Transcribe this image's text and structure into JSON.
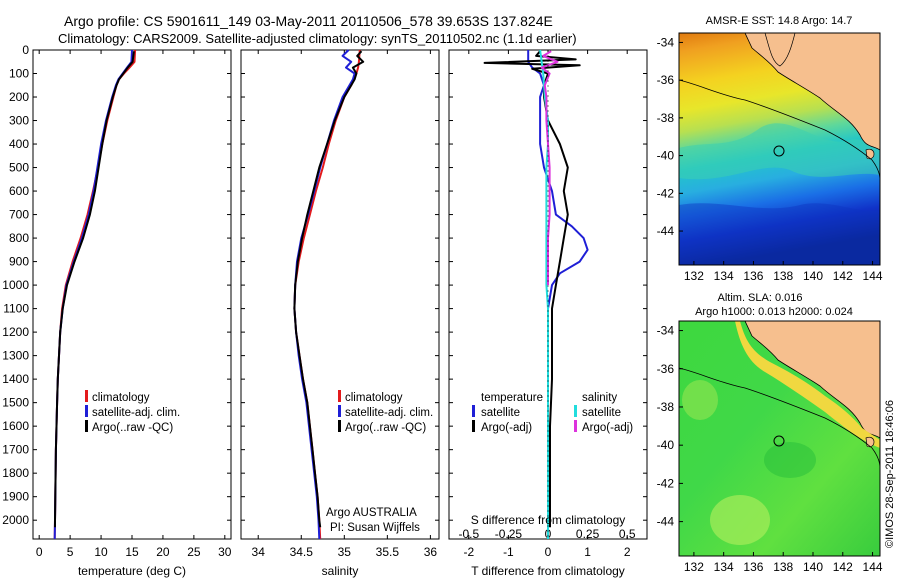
{
  "header": {
    "title_line1": "Argo profile: CS 5901611_149 03-May-2011 20110506_578 39.653S 137.824E",
    "title_line2": "Climatology: CARS2009. Satellite-adjusted climatology: synTS_20110502.nc (1.1d earlier)"
  },
  "colors": {
    "climatology": "#e31a1c",
    "satellite": "#1f1fd6",
    "argo": "#000000",
    "sal_satellite": "#22dddd",
    "sal_argo": "#dd33dd"
  },
  "legend_profile": {
    "climatology": "climatology",
    "satellite": "satellite-adj. clim.",
    "argo": "Argo(..raw -QC)"
  },
  "legend_diff": {
    "temperature_heading": "temperature",
    "salinity_heading": "salinity",
    "t_satellite": "satellite",
    "t_argo": "Argo(-adj)",
    "s_satellite": "satellite",
    "s_argo": "Argo(-adj)"
  },
  "annotation_salinity": {
    "line1": "Argo AUSTRALIA",
    "line2": "PI: Susan Wijffels"
  },
  "sst_map": {
    "title": "AMSR-E SST: 14.8 Argo: 14.7",
    "x_ticks": [
      "132",
      "134",
      "136",
      "138",
      "140",
      "142",
      "144"
    ],
    "y_ticks": [
      "-34",
      "-36",
      "-38",
      "-40",
      "-42",
      "-44"
    ]
  },
  "sla_map": {
    "title_line1": "Altim. SLA: 0.016",
    "title_line2": "Argo h1000: 0.013 h2000: 0.024",
    "x_ticks": [
      "132",
      "134",
      "136",
      "138",
      "140",
      "142",
      "144"
    ],
    "y_ticks": [
      "-34",
      "-36",
      "-38",
      "-40",
      "-42",
      "-44"
    ]
  },
  "credit": "©IMOS 28-Sep-2011 18:46:06",
  "chart_data": [
    {
      "type": "line",
      "panel": "temperature",
      "xlabel": "temperature (deg C)",
      "xlim": [
        -1,
        31
      ],
      "ylim": [
        2080,
        0
      ],
      "x_ticks": [
        "0",
        "5",
        "10",
        "15",
        "20",
        "25",
        "30"
      ],
      "y_ticks": [
        "0",
        "100",
        "200",
        "300",
        "400",
        "500",
        "600",
        "700",
        "800",
        "900",
        "1000",
        "1100",
        "1200",
        "1300",
        "1400",
        "1500",
        "1600",
        "1700",
        "1800",
        "1900",
        "2000"
      ],
      "series": [
        {
          "name": "climatology",
          "color_key": "climatology",
          "depth": [
            0,
            50,
            75,
            100,
            125,
            150,
            200,
            300,
            400,
            500,
            600,
            700,
            800,
            900,
            1000,
            1100,
            1200,
            1300,
            1400,
            1500,
            1600,
            1700,
            1800,
            1900,
            2000,
            2080
          ],
          "values": [
            15.5,
            15.4,
            14.6,
            13.7,
            12.9,
            12.5,
            12.0,
            11.0,
            10.2,
            9.5,
            8.7,
            7.8,
            6.7,
            5.4,
            4.3,
            3.7,
            3.4,
            3.2,
            3.0,
            2.9,
            2.8,
            2.7,
            2.65,
            2.6,
            2.55,
            2.5
          ]
        },
        {
          "name": "satellite-adj. clim.",
          "color_key": "satellite",
          "depth": [
            0,
            50,
            75,
            100,
            125,
            150,
            200,
            300,
            400,
            500,
            600,
            700,
            800,
            900,
            1000,
            1100,
            1200,
            1300,
            1400,
            1500,
            1600,
            1700,
            1800,
            1900,
            2000,
            2080
          ],
          "values": [
            15.0,
            14.9,
            14.2,
            13.5,
            12.8,
            12.4,
            11.8,
            10.8,
            10.0,
            9.4,
            8.8,
            8.0,
            6.9,
            5.6,
            4.4,
            3.8,
            3.4,
            3.2,
            3.0,
            2.9,
            2.8,
            2.7,
            2.65,
            2.6,
            2.55,
            2.5
          ]
        },
        {
          "name": "Argo(..raw -QC)",
          "color_key": "argo",
          "depth": [
            5,
            50,
            75,
            100,
            125,
            150,
            200,
            300,
            400,
            500,
            600,
            700,
            800,
            900,
            1000,
            1100,
            1200,
            1300,
            1400,
            1500,
            1600,
            1700,
            1800,
            1900,
            2000,
            2030
          ],
          "values": [
            15.3,
            15.1,
            14.3,
            13.6,
            12.9,
            12.5,
            11.9,
            10.9,
            10.2,
            9.6,
            9.0,
            8.2,
            7.1,
            5.7,
            4.5,
            3.8,
            3.4,
            3.2,
            3.0,
            2.9,
            2.8,
            2.7,
            2.65,
            2.6,
            2.55,
            2.55
          ]
        }
      ]
    },
    {
      "type": "line",
      "panel": "salinity",
      "xlabel": "salinity",
      "xlim": [
        33.8,
        36.1
      ],
      "ylim": [
        2080,
        0
      ],
      "x_ticks": [
        "34",
        "34.5",
        "35",
        "35.5",
        "36"
      ],
      "series": [
        {
          "name": "climatology",
          "color_key": "climatology",
          "depth": [
            0,
            50,
            75,
            100,
            125,
            150,
            200,
            300,
            400,
            500,
            600,
            700,
            800,
            900,
            1000,
            1100,
            1200,
            1300,
            1400,
            1500,
            1600,
            1700,
            1800,
            1900,
            2000,
            2080
          ],
          "values": [
            35.18,
            35.17,
            35.16,
            35.14,
            35.11,
            35.08,
            35.0,
            34.9,
            34.82,
            34.75,
            34.67,
            34.6,
            34.53,
            34.47,
            34.43,
            34.42,
            34.44,
            34.48,
            34.52,
            34.57,
            34.6,
            34.63,
            34.66,
            34.69,
            34.71,
            34.72
          ]
        },
        {
          "name": "satellite-adj. clim.",
          "color_key": "satellite",
          "depth": [
            0,
            25,
            50,
            75,
            100,
            125,
            150,
            200,
            300,
            400,
            500,
            600,
            700,
            800,
            900,
            1000,
            1100,
            1200,
            1300,
            1400,
            1500,
            1600,
            1700,
            1800,
            1900,
            2000,
            2080
          ],
          "values": [
            35.05,
            34.98,
            35.08,
            35.02,
            35.12,
            35.1,
            35.06,
            34.98,
            34.88,
            34.8,
            34.72,
            34.65,
            34.58,
            34.5,
            34.45,
            34.43,
            34.42,
            34.44,
            34.47,
            34.51,
            34.56,
            34.59,
            34.62,
            34.65,
            34.68,
            34.7,
            34.71
          ]
        },
        {
          "name": "Argo(..raw -QC)",
          "color_key": "argo",
          "depth": [
            5,
            25,
            50,
            75,
            100,
            125,
            150,
            200,
            300,
            400,
            500,
            600,
            700,
            800,
            900,
            1000,
            1100,
            1200,
            1300,
            1400,
            1500,
            1600,
            1700,
            1800,
            1900,
            2000,
            2030
          ],
          "values": [
            35.2,
            35.15,
            35.22,
            35.1,
            35.14,
            35.12,
            35.08,
            35.0,
            34.89,
            34.8,
            34.71,
            34.64,
            34.57,
            34.51,
            34.46,
            34.43,
            34.42,
            34.44,
            34.48,
            34.52,
            34.57,
            34.6,
            34.63,
            34.66,
            34.69,
            34.71,
            34.72
          ]
        }
      ]
    },
    {
      "type": "line",
      "panel": "difference",
      "xlabel": "T difference from climatology",
      "xlabel_top": "S difference from climatology",
      "xlim": [
        -2.5,
        2.5
      ],
      "ylim": [
        2080,
        0
      ],
      "x_ticks": [
        "-2",
        "-1",
        "0",
        "1",
        "2"
      ],
      "x_ticks_top": [
        "-0.5",
        "-0.25",
        "0",
        "0.25",
        "0.5"
      ],
      "series": [
        {
          "name": "temperature satellite",
          "color_key": "satellite",
          "depth": [
            0,
            50,
            75,
            100,
            150,
            200,
            300,
            400,
            500,
            600,
            700,
            750,
            800,
            850,
            900,
            950,
            1000,
            1100,
            1200,
            1400,
            1600,
            1800,
            2000,
            2080
          ],
          "values": [
            -0.5,
            -0.5,
            -0.4,
            -0.2,
            -0.1,
            -0.2,
            -0.2,
            -0.2,
            -0.1,
            0.1,
            0.2,
            0.6,
            0.9,
            1.0,
            0.8,
            0.3,
            0.1,
            0.0,
            0.0,
            0.0,
            0.0,
            0.0,
            0.0,
            0.0
          ]
        },
        {
          "name": "temperature Argo(-adj)",
          "color_key": "argo",
          "depth": [
            5,
            25,
            40,
            55,
            65,
            80,
            100,
            150,
            200,
            300,
            400,
            500,
            600,
            700,
            800,
            900,
            1000,
            1100,
            1200,
            1400,
            1600,
            1800,
            2000,
            2030
          ],
          "values": [
            -0.2,
            -0.3,
            0.7,
            -1.6,
            0.8,
            -0.4,
            0.0,
            -0.1,
            -0.1,
            0.0,
            0.3,
            0.5,
            0.4,
            0.5,
            0.4,
            0.3,
            0.2,
            0.1,
            0.1,
            0.1,
            0.05,
            0.05,
            0.05,
            0.05
          ]
        },
        {
          "name": "salinity satellite",
          "color_key": "sal_satellite",
          "depth": [
            0,
            100,
            200,
            300,
            400,
            500,
            600,
            700,
            800,
            900,
            1000,
            1100,
            1200,
            1300,
            1400,
            1500,
            1600,
            1700,
            1800,
            1900,
            2000,
            2080
          ],
          "values": [
            -0.05,
            -0.03,
            -0.02,
            0.0,
            0.0,
            -0.01,
            -0.01,
            -0.01,
            -0.01,
            -0.01,
            -0.01,
            0.0,
            0.0,
            0.0,
            0.0,
            0.0,
            0.0,
            0.0,
            0.0,
            0.0,
            0.0,
            0.0
          ]
        },
        {
          "name": "salinity Argo(-adj)",
          "color_key": "sal_argo",
          "depth": [
            5,
            25,
            50,
            75,
            100,
            150,
            200,
            300,
            400,
            500,
            600,
            700,
            800,
            900,
            1000
          ],
          "values": [
            0.02,
            -0.03,
            0.06,
            -0.04,
            0.01,
            -0.02,
            -0.01,
            -0.01,
            0.0,
            0.01,
            0.01,
            0.01,
            0.0,
            0.0,
            0.0
          ]
        }
      ]
    }
  ]
}
